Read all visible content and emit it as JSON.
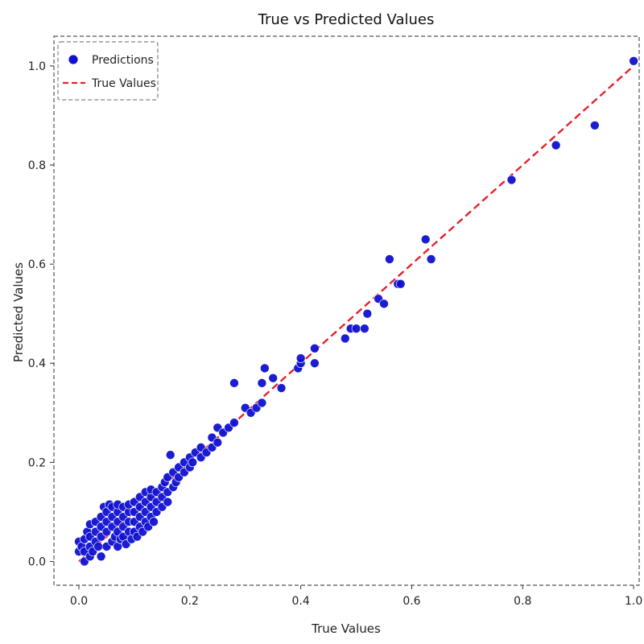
{
  "chart_data": {
    "type": "scatter",
    "title": "True vs Predicted Values",
    "xlabel": "True Values",
    "ylabel": "Predicted Values",
    "xlim": [
      -0.045,
      1.01
    ],
    "ylim": [
      -0.048,
      1.06
    ],
    "xticks": [
      0.0,
      0.2,
      0.4,
      0.6,
      0.8,
      1.0
    ],
    "yticks": [
      0.0,
      0.2,
      0.4,
      0.6,
      0.8,
      1.0
    ],
    "xtick_labels": [
      "0.0",
      "0.2",
      "0.4",
      "0.6",
      "0.8",
      "1.0"
    ],
    "ytick_labels": [
      "0.0",
      "0.2",
      "0.4",
      "0.6",
      "0.8",
      "1.0"
    ],
    "grid": false,
    "legend_position": "upper-left",
    "series": [
      {
        "name": "Predictions",
        "kind": "scatter",
        "color": "#1010d0",
        "points": [
          [
            0.0,
            0.02
          ],
          [
            0.0,
            0.04
          ],
          [
            0.005,
            0.03
          ],
          [
            0.01,
            0.0
          ],
          [
            0.01,
            0.02
          ],
          [
            0.01,
            0.045
          ],
          [
            0.015,
            0.06
          ],
          [
            0.02,
            0.01
          ],
          [
            0.02,
            0.03
          ],
          [
            0.02,
            0.05
          ],
          [
            0.02,
            0.075
          ],
          [
            0.025,
            0.02
          ],
          [
            0.03,
            0.04
          ],
          [
            0.03,
            0.06
          ],
          [
            0.03,
            0.08
          ],
          [
            0.035,
            0.03
          ],
          [
            0.04,
            0.01
          ],
          [
            0.04,
            0.05
          ],
          [
            0.04,
            0.07
          ],
          [
            0.04,
            0.09
          ],
          [
            0.045,
            0.11
          ],
          [
            0.05,
            0.03
          ],
          [
            0.05,
            0.06
          ],
          [
            0.05,
            0.08
          ],
          [
            0.05,
            0.1
          ],
          [
            0.055,
            0.115
          ],
          [
            0.06,
            0.04
          ],
          [
            0.06,
            0.07
          ],
          [
            0.06,
            0.09
          ],
          [
            0.06,
            0.11
          ],
          [
            0.065,
            0.05
          ],
          [
            0.07,
            0.03
          ],
          [
            0.07,
            0.06
          ],
          [
            0.07,
            0.08
          ],
          [
            0.07,
            0.1
          ],
          [
            0.07,
            0.115
          ],
          [
            0.075,
            0.045
          ],
          [
            0.08,
            0.05
          ],
          [
            0.08,
            0.07
          ],
          [
            0.08,
            0.09
          ],
          [
            0.08,
            0.11
          ],
          [
            0.085,
            0.035
          ],
          [
            0.09,
            0.06
          ],
          [
            0.09,
            0.08
          ],
          [
            0.09,
            0.1
          ],
          [
            0.09,
            0.115
          ],
          [
            0.095,
            0.045
          ],
          [
            0.1,
            0.06
          ],
          [
            0.1,
            0.08
          ],
          [
            0.1,
            0.1
          ],
          [
            0.1,
            0.12
          ],
          [
            0.105,
            0.05
          ],
          [
            0.11,
            0.07
          ],
          [
            0.11,
            0.09
          ],
          [
            0.11,
            0.11
          ],
          [
            0.11,
            0.13
          ],
          [
            0.115,
            0.06
          ],
          [
            0.12,
            0.08
          ],
          [
            0.12,
            0.1
          ],
          [
            0.12,
            0.12
          ],
          [
            0.12,
            0.14
          ],
          [
            0.125,
            0.07
          ],
          [
            0.13,
            0.09
          ],
          [
            0.13,
            0.11
          ],
          [
            0.13,
            0.13
          ],
          [
            0.13,
            0.145
          ],
          [
            0.135,
            0.08
          ],
          [
            0.14,
            0.1
          ],
          [
            0.14,
            0.12
          ],
          [
            0.14,
            0.14
          ],
          [
            0.15,
            0.11
          ],
          [
            0.15,
            0.13
          ],
          [
            0.15,
            0.15
          ],
          [
            0.155,
            0.16
          ],
          [
            0.16,
            0.12
          ],
          [
            0.16,
            0.14
          ],
          [
            0.16,
            0.17
          ],
          [
            0.165,
            0.215
          ],
          [
            0.17,
            0.15
          ],
          [
            0.17,
            0.18
          ],
          [
            0.175,
            0.16
          ],
          [
            0.18,
            0.17
          ],
          [
            0.18,
            0.19
          ],
          [
            0.19,
            0.18
          ],
          [
            0.19,
            0.2
          ],
          [
            0.2,
            0.19
          ],
          [
            0.2,
            0.21
          ],
          [
            0.205,
            0.2
          ],
          [
            0.21,
            0.22
          ],
          [
            0.22,
            0.21
          ],
          [
            0.22,
            0.23
          ],
          [
            0.23,
            0.22
          ],
          [
            0.24,
            0.23
          ],
          [
            0.24,
            0.25
          ],
          [
            0.25,
            0.24
          ],
          [
            0.25,
            0.27
          ],
          [
            0.26,
            0.26
          ],
          [
            0.27,
            0.27
          ],
          [
            0.28,
            0.28
          ],
          [
            0.28,
            0.36
          ],
          [
            0.3,
            0.31
          ],
          [
            0.31,
            0.3
          ],
          [
            0.32,
            0.31
          ],
          [
            0.33,
            0.32
          ],
          [
            0.33,
            0.36
          ],
          [
            0.335,
            0.39
          ],
          [
            0.35,
            0.37
          ],
          [
            0.365,
            0.35
          ],
          [
            0.395,
            0.39
          ],
          [
            0.4,
            0.4
          ],
          [
            0.4,
            0.41
          ],
          [
            0.425,
            0.43
          ],
          [
            0.425,
            0.4
          ],
          [
            0.48,
            0.45
          ],
          [
            0.49,
            0.47
          ],
          [
            0.5,
            0.47
          ],
          [
            0.515,
            0.47
          ],
          [
            0.52,
            0.5
          ],
          [
            0.54,
            0.53
          ],
          [
            0.55,
            0.52
          ],
          [
            0.56,
            0.61
          ],
          [
            0.575,
            0.56
          ],
          [
            0.58,
            0.56
          ],
          [
            0.625,
            0.65
          ],
          [
            0.635,
            0.61
          ],
          [
            0.78,
            0.77
          ],
          [
            0.86,
            0.84
          ],
          [
            0.93,
            0.88
          ],
          [
            1.0,
            1.01
          ]
        ]
      },
      {
        "name": "True Values",
        "kind": "line",
        "color": "#e8202a",
        "dash": "dashed",
        "x": [
          0.0,
          1.0
        ],
        "y": [
          0.0,
          1.0
        ]
      }
    ]
  }
}
